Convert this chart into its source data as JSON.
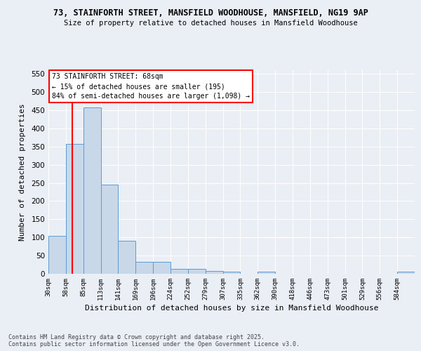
{
  "title": "73, STAINFORTH STREET, MANSFIELD WOODHOUSE, MANSFIELD, NG19 9AP",
  "subtitle": "Size of property relative to detached houses in Mansfield Woodhouse",
  "xlabel": "Distribution of detached houses by size in Mansfield Woodhouse",
  "ylabel": "Number of detached properties",
  "bin_labels": [
    "30sqm",
    "58sqm",
    "85sqm",
    "113sqm",
    "141sqm",
    "169sqm",
    "196sqm",
    "224sqm",
    "252sqm",
    "279sqm",
    "307sqm",
    "335sqm",
    "362sqm",
    "390sqm",
    "418sqm",
    "446sqm",
    "473sqm",
    "501sqm",
    "529sqm",
    "556sqm",
    "584sqm"
  ],
  "bar_heights": [
    105,
    357,
    457,
    245,
    90,
    32,
    32,
    13,
    13,
    8,
    6,
    0,
    6,
    0,
    0,
    0,
    0,
    0,
    0,
    0,
    5
  ],
  "bar_color": "#c8d8e8",
  "bar_edge_color": "#5b9bd5",
  "property_line_color": "red",
  "annotation_title": "73 STAINFORTH STREET: 68sqm",
  "annotation_line1": "← 15% of detached houses are smaller (195)",
  "annotation_line2": "84% of semi-detached houses are larger (1,098) →",
  "ylim": [
    0,
    560
  ],
  "yticks": [
    0,
    50,
    100,
    150,
    200,
    250,
    300,
    350,
    400,
    450,
    500,
    550
  ],
  "footer_line1": "Contains HM Land Registry data © Crown copyright and database right 2025.",
  "footer_line2": "Contains public sector information licensed under the Open Government Licence v3.0.",
  "background_color": "#eaeef5",
  "grid_color": "#ffffff"
}
